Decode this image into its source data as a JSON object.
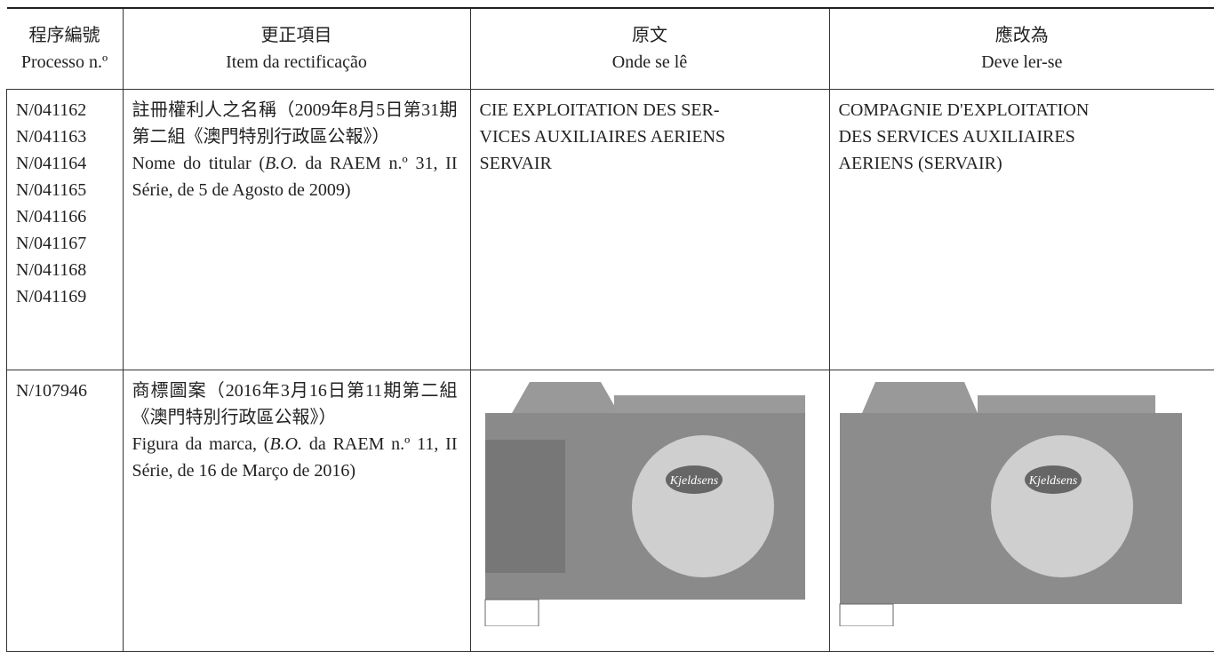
{
  "table": {
    "header": [
      [
        "程序編號",
        "Processo n.º"
      ],
      [
        "更正項目",
        "Item da rectificação"
      ],
      [
        "原文",
        "Onde se lê"
      ],
      [
        "應改為",
        "Deve ler-se"
      ]
    ],
    "rows": [
      {
        "processes": [
          "N/041162",
          "N/041163",
          "N/041164",
          "N/041165",
          "N/041166",
          "N/041167",
          "N/041168",
          "N/041169"
        ],
        "item_zh": "註冊權利人之名稱（2009年8月5日第31期第二組《澳門特別行政區公報》）",
        "item_pt": [
          "Nome do titular (",
          "B.O.",
          " da RAEM n.º 31, II Série, de 5 de Agosto de 2009)"
        ],
        "original": [
          "CIE EXPLOITATION DES SER-",
          "VICES AUXILIAIRES AERIENS",
          "SERVAIR"
        ],
        "corrected": [
          "COMPAGNIE D'EXPLOITATION",
          "DES SERVICES AUXILIAIRES",
          "AERIENS (SERVAIR)"
        ]
      },
      {
        "processes": [
          "N/107946"
        ],
        "item_zh": "商標圖案（2016年3月16日第11期第二組《澳門特別行政區公報》）",
        "item_pt": [
          "Figura da marca, (",
          "B.O.",
          " da RAEM n.º 11, II Série, de 16 de Março de 2016)"
        ],
        "original_image_brand": "Kjeldsens",
        "corrected_image_brand": "Kjeldsens"
      }
    ]
  }
}
